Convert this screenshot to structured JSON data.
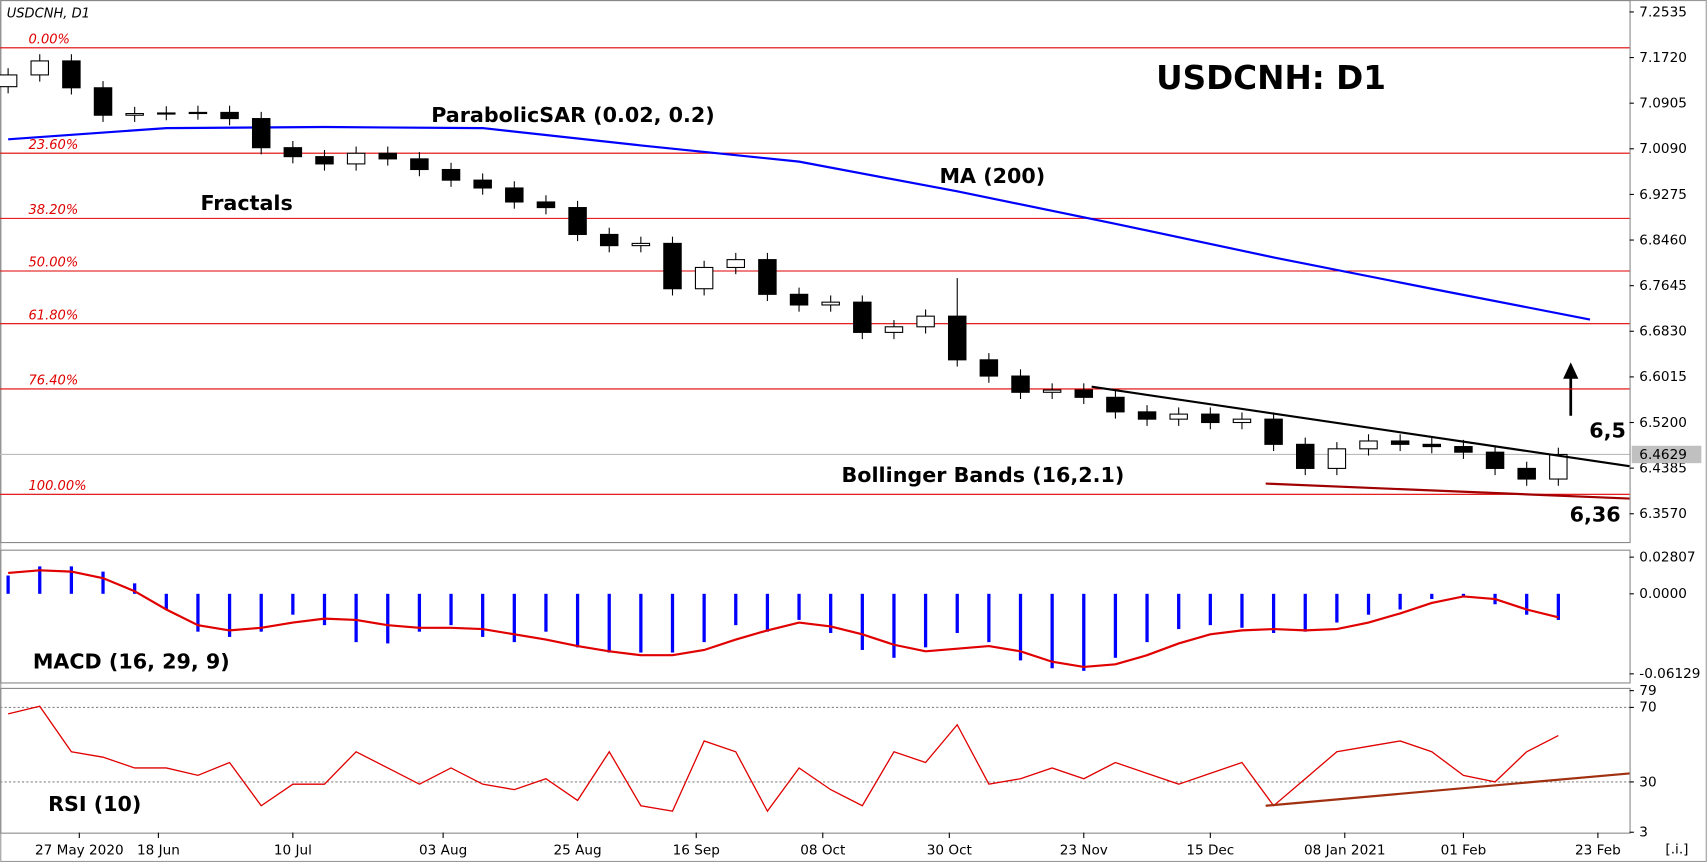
{
  "chart_data": [
    {
      "type": "candlestick",
      "symbol": "USDCNH, D1",
      "title": "USDCNH: D1",
      "xlim": [
        -1,
        205
      ],
      "xticks": [
        {
          "value": 9,
          "label": "27 May 2020"
        },
        {
          "value": 19,
          "label": "18 Jun"
        },
        {
          "value": 36,
          "label": "10 Jul"
        },
        {
          "value": 55,
          "label": "03 Aug"
        },
        {
          "value": 72,
          "label": "25 Aug"
        },
        {
          "value": 87,
          "label": "16 Sep"
        },
        {
          "value": 103,
          "label": "08 Oct"
        },
        {
          "value": 119,
          "label": "30 Oct"
        },
        {
          "value": 136,
          "label": "23 Nov"
        },
        {
          "value": 152,
          "label": "15 Dec"
        },
        {
          "value": 169,
          "label": "08 Jan 2021"
        },
        {
          "value": 184,
          "label": "01 Feb"
        },
        {
          "value": 201,
          "label": "23 Feb"
        }
      ],
      "ylim": [
        6.3065,
        7.2729
      ],
      "yticks": [
        7.2535,
        {
          "value": 7.172,
          "label": "7.1720"
        },
        7.0905,
        {
          "value": 7.009,
          "label": "7.0090"
        },
        6.9275,
        {
          "value": 6.846,
          "label": "6.8460"
        },
        6.7645,
        {
          "value": 6.683,
          "label": "6.6830"
        },
        6.6015,
        {
          "value": 6.52,
          "label": "6.5200"
        },
        6.4385,
        {
          "value": 6.357,
          "label": "6.3570"
        }
      ],
      "x": [
        0,
        4,
        8,
        12,
        16,
        20,
        24,
        28,
        32,
        36,
        40,
        44,
        48,
        52,
        56,
        60,
        64,
        68,
        72,
        76,
        80,
        84,
        88,
        92,
        96,
        100,
        104,
        108,
        112,
        116,
        120,
        124,
        128,
        132,
        136,
        140,
        144,
        148,
        152,
        156,
        160,
        164,
        168,
        172,
        176,
        180,
        184,
        188,
        192,
        196
      ],
      "open": [
        7.12,
        7.141,
        7.166,
        7.118,
        7.069,
        7.072,
        7.073,
        7.074,
        7.063,
        7.011,
        6.995,
        6.982,
        7.001,
        6.991,
        6.972,
        6.953,
        6.939,
        6.914,
        6.904,
        6.856,
        6.836,
        6.84,
        6.759,
        6.797,
        6.811,
        6.749,
        6.73,
        6.735,
        6.681,
        6.691,
        6.71,
        6.632,
        6.603,
        6.574,
        6.578,
        6.565,
        6.539,
        6.526,
        6.535,
        6.52,
        6.526,
        6.481,
        6.438,
        6.473,
        6.487,
        6.481,
        6.477,
        6.467,
        6.438,
        6.419
      ],
      "high": [
        7.153,
        7.178,
        7.178,
        7.13,
        7.084,
        7.085,
        7.086,
        7.086,
        7.075,
        7.023,
        7.007,
        7.013,
        7.013,
        7.003,
        6.984,
        6.965,
        6.951,
        6.926,
        6.916,
        6.868,
        6.852,
        6.852,
        6.809,
        6.823,
        6.823,
        6.761,
        6.747,
        6.747,
        6.703,
        6.722,
        6.778,
        6.644,
        6.615,
        6.59,
        6.59,
        6.577,
        6.551,
        6.547,
        6.547,
        6.538,
        6.538,
        6.493,
        6.485,
        6.499,
        6.499,
        6.493,
        6.489,
        6.479,
        6.45,
        6.475
      ],
      "low": [
        7.108,
        7.129,
        7.106,
        7.057,
        7.057,
        7.06,
        7.061,
        7.051,
        6.999,
        6.983,
        6.97,
        6.97,
        6.979,
        6.96,
        6.941,
        6.927,
        6.902,
        6.892,
        6.844,
        6.824,
        6.824,
        6.747,
        6.747,
        6.785,
        6.737,
        6.718,
        6.718,
        6.669,
        6.669,
        6.679,
        6.62,
        6.591,
        6.562,
        6.562,
        6.553,
        6.527,
        6.514,
        6.514,
        6.508,
        6.508,
        6.469,
        6.426,
        6.426,
        6.461,
        6.469,
        6.465,
        6.455,
        6.426,
        6.407,
        6.407
      ],
      "close": [
        7.141,
        7.166,
        7.118,
        7.069,
        7.072,
        7.073,
        7.074,
        7.063,
        7.011,
        6.995,
        6.982,
        7.001,
        6.991,
        6.972,
        6.953,
        6.939,
        6.914,
        6.904,
        6.856,
        6.836,
        6.84,
        6.759,
        6.797,
        6.811,
        6.749,
        6.73,
        6.735,
        6.681,
        6.691,
        6.71,
        6.632,
        6.603,
        6.574,
        6.578,
        6.565,
        6.539,
        6.526,
        6.535,
        6.52,
        6.526,
        6.481,
        6.438,
        6.473,
        6.487,
        6.481,
        6.477,
        6.467,
        6.438,
        6.419,
        6.4629
      ],
      "ma": {
        "name": "MA (200)",
        "color": "#0000ff",
        "x": [
          0,
          20,
          40,
          60,
          80,
          100,
          120,
          140,
          160,
          180,
          200
        ],
        "values": [
          7.026,
          7.046,
          7.048,
          7.046,
          7.015,
          6.986,
          6.933,
          6.875,
          6.815,
          6.759,
          6.704
        ]
      },
      "fibonacci": [
        {
          "label": "0.00%",
          "value": 7.1895
        },
        {
          "label": "23.60%",
          "value": 7.0012
        },
        {
          "label": "38.20%",
          "value": 6.8847
        },
        {
          "label": "50.00%",
          "value": 6.7907
        },
        {
          "label": "61.80%",
          "value": 6.6965
        },
        {
          "label": "76.40%",
          "value": 6.58
        },
        {
          "label": "100.00%",
          "value": 6.3918
        }
      ],
      "fib_color": "#e00000",
      "trendlines": [
        {
          "color": "#000000",
          "x": [
            137,
            205
          ],
          "values": [
            6.584,
            6.442
          ]
        },
        {
          "color": "#a00000",
          "x": [
            159,
            205
          ],
          "values": [
            6.411,
            6.384
          ]
        }
      ],
      "annotations": [
        "ParabolicSAR (0.02, 0.2)",
        "Fractals",
        "Bollinger Bands (16,2.1)",
        "6,5",
        "6,36"
      ],
      "scale_label": "[.i.]"
    },
    {
      "type": "macd",
      "title": "MACD (16, 29, 9)",
      "ylim": [
        -0.06785,
        0.03299
      ],
      "yticks": [
        0.02807,
        {
          "value": 0,
          "label": "0.0000"
        },
        -0.06129
      ],
      "color": "#0000ff",
      "signal_color": "#e00000",
      "values": [
        0.014,
        0.021,
        0.021,
        0.017,
        0.008,
        -0.012,
        -0.029,
        -0.033,
        -0.029,
        -0.016,
        -0.024,
        -0.037,
        -0.038,
        -0.029,
        -0.024,
        -0.033,
        -0.037,
        -0.029,
        -0.041,
        -0.045,
        -0.045,
        -0.045,
        -0.037,
        -0.024,
        -0.029,
        -0.02,
        -0.03,
        -0.043,
        -0.049,
        -0.041,
        -0.03,
        -0.037,
        -0.051,
        -0.057,
        -0.059,
        -0.049,
        -0.037,
        -0.027,
        -0.024,
        -0.026,
        -0.03,
        -0.029,
        -0.022,
        -0.016,
        -0.012,
        -0.004,
        -0.002,
        -0.008,
        -0.016,
        -0.02
      ],
      "signal": [
        0.016,
        0.018,
        0.017,
        0.012,
        0.002,
        -0.012,
        -0.024,
        -0.028,
        -0.026,
        -0.022,
        -0.019,
        -0.02,
        -0.024,
        -0.026,
        -0.026,
        -0.027,
        -0.031,
        -0.035,
        -0.04,
        -0.044,
        -0.047,
        -0.047,
        -0.043,
        -0.035,
        -0.028,
        -0.022,
        -0.025,
        -0.031,
        -0.039,
        -0.044,
        -0.042,
        -0.04,
        -0.044,
        -0.052,
        -0.056,
        -0.054,
        -0.047,
        -0.038,
        -0.031,
        -0.028,
        -0.027,
        -0.028,
        -0.027,
        -0.022,
        -0.015,
        -0.007,
        -0.002,
        -0.004,
        -0.012,
        -0.018
      ]
    },
    {
      "type": "line",
      "title": "RSI (10)",
      "ylim": [
        2.8,
        79.9
      ],
      "yticks": [
        79,
        70,
        30,
        3
      ],
      "levels": [
        70,
        30
      ],
      "color": "#e00000",
      "values": [
        66.5,
        70.6,
        46.2,
        43.3,
        37.5,
        37.5,
        33.5,
        40.4,
        17.2,
        28.8,
        28.8,
        46.2,
        37.5,
        28.8,
        37.5,
        28.8,
        25.9,
        31.7,
        20.1,
        46.2,
        17.2,
        14.3,
        52.0,
        46.2,
        14.3,
        37.5,
        25.9,
        17.2,
        46.2,
        40.4,
        60.7,
        28.8,
        31.7,
        37.5,
        31.7,
        40.4,
        34.6,
        28.8,
        34.6,
        40.4,
        17.2,
        31.7,
        46.2,
        49.1,
        52.0,
        46.2,
        33.5,
        30.0,
        46.2,
        54.9
      ],
      "trendline": {
        "color": "#a03010",
        "x": [
          159,
          205
        ],
        "values": [
          17.2,
          34.6
        ]
      }
    }
  ]
}
